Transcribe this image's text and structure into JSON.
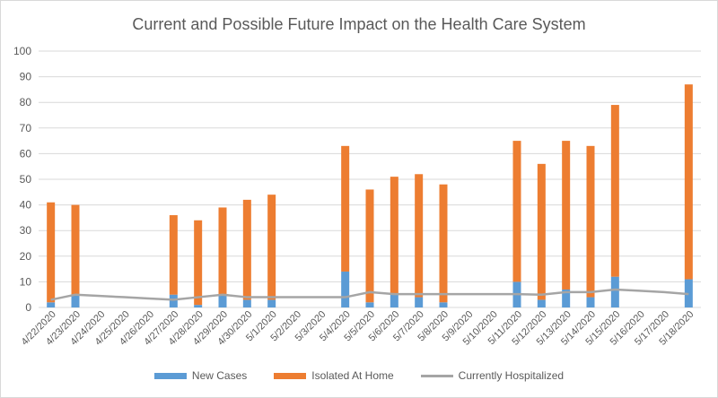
{
  "chart_data": {
    "type": "bar",
    "title": "Current and Possible Future Impact on the Health Care System",
    "xlabel": "",
    "ylabel": "",
    "ylim": [
      0,
      100
    ],
    "yticks": [
      0,
      10,
      20,
      30,
      40,
      50,
      60,
      70,
      80,
      90,
      100
    ],
    "grid": true,
    "legend_position": "bottom",
    "stacked": true,
    "categories": [
      "4/22/2020",
      "4/23/2020",
      "4/24/2020",
      "4/25/2020",
      "4/26/2020",
      "4/27/2020",
      "4/28/2020",
      "4/29/2020",
      "4/30/2020",
      "5/1/2020",
      "5/2/2020",
      "5/3/2020",
      "5/4/2020",
      "5/5/2020",
      "5/6/2020",
      "5/7/2020",
      "5/8/2020",
      "5/9/2020",
      "5/10/2020",
      "5/11/2020",
      "5/12/2020",
      "5/13/2020",
      "5/14/2020",
      "5/15/2020",
      "5/16/2020",
      "5/17/2020",
      "5/18/2020"
    ],
    "series": [
      {
        "name": "New Cases",
        "type": "bar",
        "color": "#5b9bd5",
        "values": [
          2,
          5,
          null,
          null,
          null,
          5,
          1,
          5,
          3,
          3,
          null,
          null,
          14,
          2,
          5,
          4,
          2,
          null,
          null,
          10,
          3,
          7,
          4,
          12,
          null,
          null,
          11
        ]
      },
      {
        "name": "Isolated At Home",
        "type": "bar",
        "color": "#ed7d31",
        "values": [
          39,
          35,
          null,
          null,
          null,
          31,
          33,
          34,
          39,
          41,
          null,
          null,
          49,
          44,
          46,
          48,
          46,
          null,
          null,
          55,
          53,
          58,
          59,
          67,
          null,
          null,
          76
        ]
      },
      {
        "name": "Currently Hospitalized",
        "type": "line",
        "color": "#a5a5a5",
        "values": [
          3,
          5,
          4.5,
          4,
          3.5,
          3,
          4,
          5,
          4,
          4,
          4,
          4,
          4,
          6,
          5.2,
          5.2,
          5.2,
          5.2,
          5.2,
          5.2,
          5,
          6,
          6,
          7,
          6.5,
          6,
          5.2
        ]
      }
    ]
  }
}
